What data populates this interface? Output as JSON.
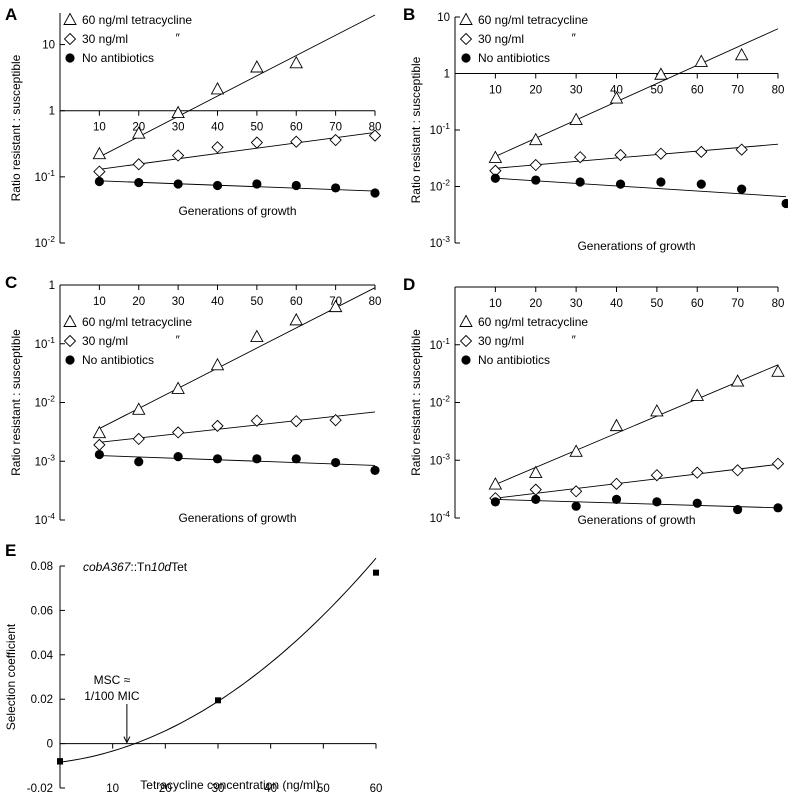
{
  "chart_data": [
    {
      "panel": "A",
      "type": "scatter",
      "yscale": "log",
      "xlabel": "Generations of growth",
      "ylabel": "Ratio resistant : susceptible",
      "xlim": [
        0,
        80
      ],
      "ylim": [
        0.01,
        30
      ],
      "xticks": [
        "10",
        "20",
        "30",
        "40",
        "50",
        "60",
        "70",
        "80"
      ],
      "yticks": [
        {
          "value": 10,
          "base": "10",
          "exp": ""
        },
        {
          "value": 1,
          "base": "1",
          "exp": ""
        },
        {
          "value": 0.1,
          "base": "10",
          "exp": "-1"
        },
        {
          "value": 0.01,
          "base": "10",
          "exp": "-2"
        }
      ],
      "legend": [
        {
          "marker": "triangle",
          "label": "60 ng/ml tetracycline"
        },
        {
          "marker": "diamond",
          "label": "30 ng/ml",
          "ditto": "″"
        },
        {
          "marker": "circle",
          "label": "No antibiotics"
        }
      ],
      "series": [
        {
          "name": "60 ng/ml tetracycline",
          "marker": "triangle",
          "x": [
            10,
            20,
            30,
            40,
            50,
            60
          ],
          "y": [
            0.22,
            0.45,
            0.92,
            2.1,
            4.5,
            5.2
          ],
          "fit": {
            "x": [
              10,
              80
            ],
            "y": [
              0.2,
              28
            ]
          }
        },
        {
          "name": "30 ng/ml",
          "marker": "diamond",
          "x": [
            10,
            20,
            30,
            40,
            50,
            60,
            70,
            80
          ],
          "y": [
            0.12,
            0.155,
            0.21,
            0.28,
            0.33,
            0.34,
            0.36,
            0.42
          ],
          "fit": {
            "x": [
              10,
              80
            ],
            "y": [
              0.13,
              0.47
            ]
          }
        },
        {
          "name": "No antibiotics",
          "marker": "circle",
          "x": [
            10,
            20,
            30,
            40,
            50,
            60,
            70,
            80
          ],
          "y": [
            0.085,
            0.082,
            0.078,
            0.074,
            0.078,
            0.074,
            0.068,
            0.057
          ],
          "fit": {
            "x": [
              10,
              80
            ],
            "y": [
              0.087,
              0.061
            ]
          }
        }
      ]
    },
    {
      "panel": "B",
      "type": "scatter",
      "yscale": "log",
      "xlabel": "Generations of growth",
      "ylabel": "Ratio resistant : susceptible",
      "xlim": [
        0,
        80
      ],
      "ylim": [
        0.001,
        10
      ],
      "xticks": [
        "10",
        "20",
        "30",
        "40",
        "50",
        "60",
        "70",
        "80"
      ],
      "yticks": [
        {
          "value": 10,
          "base": "10",
          "exp": ""
        },
        {
          "value": 1,
          "base": "1",
          "exp": ""
        },
        {
          "value": 0.1,
          "base": "10",
          "exp": "-1"
        },
        {
          "value": 0.01,
          "base": "10",
          "exp": "-2"
        },
        {
          "value": 0.001,
          "base": "10",
          "exp": "-3"
        }
      ],
      "legend": [
        {
          "marker": "triangle",
          "label": "60 ng/ml tetracycline"
        },
        {
          "marker": "diamond",
          "label": "30 ng/ml",
          "ditto": "″"
        },
        {
          "marker": "circle",
          "label": "No antibiotics"
        }
      ],
      "series": [
        {
          "name": "60 ng/ml tetracycline",
          "marker": "triangle",
          "x": [
            10,
            20,
            30,
            40,
            51,
            61,
            71
          ],
          "y": [
            0.032,
            0.066,
            0.15,
            0.36,
            0.95,
            1.6,
            2.1
          ],
          "fit": {
            "x": [
              10,
              80
            ],
            "y": [
              0.034,
              6.2
            ]
          }
        },
        {
          "name": "30 ng/ml",
          "marker": "diamond",
          "x": [
            10,
            20,
            31,
            41,
            51,
            61,
            71
          ],
          "y": [
            0.019,
            0.024,
            0.033,
            0.036,
            0.038,
            0.041,
            0.045
          ],
          "fit": {
            "x": [
              10,
              80
            ],
            "y": [
              0.021,
              0.056
            ]
          }
        },
        {
          "name": "No antibiotics",
          "marker": "circle",
          "x": [
            10,
            20,
            31,
            41,
            51,
            61,
            71,
            82
          ],
          "y": [
            0.014,
            0.013,
            0.012,
            0.011,
            0.012,
            0.011,
            0.009,
            0.005
          ],
          "fit": {
            "x": [
              10,
              82
            ],
            "y": [
              0.014,
              0.0066
            ]
          }
        }
      ]
    },
    {
      "panel": "C",
      "type": "scatter",
      "yscale": "log",
      "xlabel": "Generations of growth",
      "ylabel": "Ratio resistant : susceptible",
      "xlim": [
        0,
        80
      ],
      "ylim": [
        0.0001,
        1
      ],
      "xticks": [
        "10",
        "20",
        "30",
        "40",
        "50",
        "60",
        "70",
        "80"
      ],
      "yticks": [
        {
          "value": 1,
          "base": "1",
          "exp": ""
        },
        {
          "value": 0.1,
          "base": "10",
          "exp": "-1"
        },
        {
          "value": 0.01,
          "base": "10",
          "exp": "-2"
        },
        {
          "value": 0.001,
          "base": "10",
          "exp": "-3"
        },
        {
          "value": 0.0001,
          "base": "10",
          "exp": "-4"
        }
      ],
      "legend": [
        {
          "marker": "triangle",
          "label": "60 ng/ml tetracycline"
        },
        {
          "marker": "diamond",
          "label": "30 ng/ml",
          "ditto": "″"
        },
        {
          "marker": "circle",
          "label": "No antibiotics"
        }
      ],
      "series": [
        {
          "name": "60 ng/ml tetracycline",
          "marker": "triangle",
          "x": [
            10,
            20,
            30,
            40,
            50,
            60,
            70
          ],
          "y": [
            0.003,
            0.0075,
            0.017,
            0.043,
            0.13,
            0.25,
            0.42
          ],
          "fit": {
            "x": [
              10,
              80
            ],
            "y": [
              0.0036,
              0.9
            ]
          }
        },
        {
          "name": "30 ng/ml",
          "marker": "diamond",
          "x": [
            10,
            20,
            30,
            40,
            50,
            60,
            70
          ],
          "y": [
            0.0019,
            0.0024,
            0.0031,
            0.004,
            0.0049,
            0.0048,
            0.005
          ],
          "fit": {
            "x": [
              10,
              80
            ],
            "y": [
              0.0021,
              0.0069
            ]
          }
        },
        {
          "name": "No antibiotics",
          "marker": "circle",
          "x": [
            10,
            20,
            30,
            40,
            50,
            60,
            70,
            80
          ],
          "y": [
            0.0013,
            0.00098,
            0.0012,
            0.0011,
            0.0011,
            0.0011,
            0.00095,
            0.0007
          ],
          "fit": {
            "x": [
              10,
              80
            ],
            "y": [
              0.00125,
              0.00085
            ]
          }
        }
      ]
    },
    {
      "panel": "D",
      "type": "scatter",
      "yscale": "log",
      "xlabel": "Generations of growth",
      "ylabel": "Ratio resistant : susceptible",
      "xlim": [
        0,
        80
      ],
      "ylim": [
        0.0001,
        1
      ],
      "xticks": [
        "10",
        "20",
        "30",
        "40",
        "50",
        "60",
        "70",
        "80"
      ],
      "yticks": [
        {
          "value": 0.1,
          "base": "10",
          "exp": "-1"
        },
        {
          "value": 0.01,
          "base": "10",
          "exp": "-2"
        },
        {
          "value": 0.001,
          "base": "10",
          "exp": "-3"
        },
        {
          "value": 0.0001,
          "base": "10",
          "exp": "-4"
        }
      ],
      "legend": [
        {
          "marker": "triangle",
          "label": "60 ng/ml tetracycline"
        },
        {
          "marker": "diamond",
          "label": "30 ng/ml",
          "ditto": "″"
        },
        {
          "marker": "circle",
          "label": "No antibiotics"
        }
      ],
      "series": [
        {
          "name": "60 ng/ml tetracycline",
          "marker": "triangle",
          "x": [
            10,
            20,
            30,
            40,
            50,
            60,
            70,
            80
          ],
          "y": [
            0.00038,
            0.0006,
            0.0014,
            0.0039,
            0.007,
            0.013,
            0.023,
            0.034
          ],
          "fit": {
            "x": [
              10,
              80
            ],
            "y": [
              0.00038,
              0.045
            ]
          }
        },
        {
          "name": "30 ng/ml",
          "marker": "diamond",
          "x": [
            10,
            20,
            30,
            40,
            50,
            60,
            70,
            80
          ],
          "y": [
            0.00022,
            0.00031,
            0.00029,
            0.00039,
            0.00055,
            0.00061,
            0.00067,
            0.00087
          ],
          "fit": {
            "x": [
              10,
              80
            ],
            "y": [
              0.00022,
              0.00085
            ]
          }
        },
        {
          "name": "No antibiotics",
          "marker": "circle",
          "x": [
            10,
            20,
            30,
            40,
            50,
            60,
            70,
            80
          ],
          "y": [
            0.00019,
            0.00021,
            0.00016,
            0.00021,
            0.00019,
            0.00018,
            0.00014,
            0.00015
          ],
          "fit": {
            "x": [
              10,
              80
            ],
            "y": [
              0.00021,
              0.00015
            ]
          }
        }
      ]
    },
    {
      "panel": "E",
      "type": "scatter",
      "title_parts": [
        {
          "text": "cobA367",
          "italic": true
        },
        {
          "text": "::Tn",
          "italic": false
        },
        {
          "text": "10d",
          "italic": true
        },
        {
          "text": "Tet",
          "italic": false
        }
      ],
      "xlabel": "Tetracycline concentration (ng/ml)",
      "ylabel": "Selection coefficient",
      "xlim": [
        0,
        60
      ],
      "ylim": [
        -0.02,
        0.08
      ],
      "xticks": [
        "10",
        "20",
        "30",
        "40",
        "50",
        "60"
      ],
      "yticks": [
        "0.08",
        "0.06",
        "0.04",
        "0.02",
        "0",
        "-0.02"
      ],
      "series": [
        {
          "marker": "square",
          "x": [
            0,
            30,
            60
          ],
          "y": [
            -0.008,
            0.0195,
            0.077
          ],
          "err": [
            0.0012,
            0.0008,
            0.0008
          ]
        }
      ],
      "fit_curve": {
        "form": "quadratic",
        "coef": [
          -0.00836,
          0.000295,
          2.06e-05
        ],
        "x": [
          0,
          60
        ]
      },
      "annotation": {
        "lines": [
          "MSC ≈",
          "1/100 MIC"
        ],
        "x": 12.7,
        "y": 0
      }
    }
  ]
}
